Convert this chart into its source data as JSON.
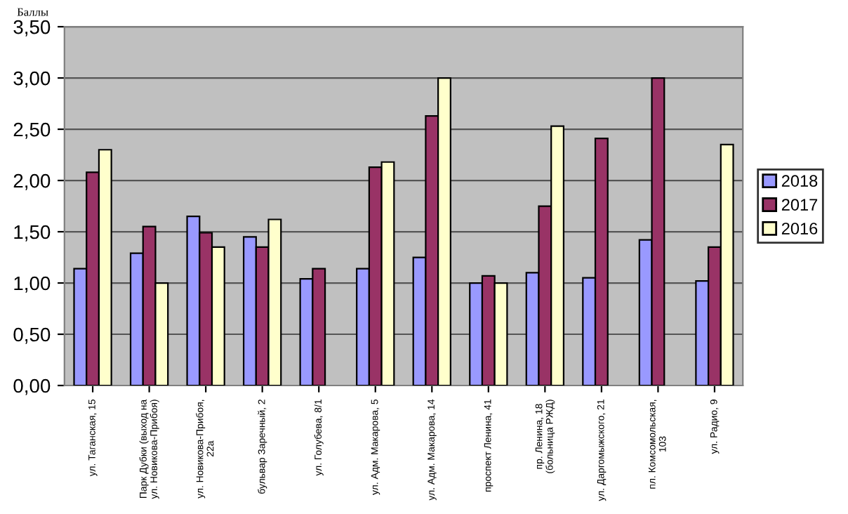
{
  "chart_data": {
    "type": "bar",
    "ylabel": "Баллы",
    "categories": [
      "ул. Таганская, 15",
      "Парк Дубки (выход на\nул. Новикова-Прибоя)",
      "ул. Новикова-Прибоя,\n22а",
      "бульвар Заречный, 2",
      "ул. Голубева, 8/1",
      "ул. Адм. Макарова, 5",
      "ул. Адм. Макарова, 14",
      "проспект Ленина, 41",
      "пр. Ленина, 18\n(больница РЖД)",
      "ул. Даргомыжского, 21",
      "пл. Комсомольская,\n103",
      "ул. Радио, 9"
    ],
    "series": [
      {
        "name": "2018",
        "color": "#9999ff",
        "values": [
          1.14,
          1.29,
          1.65,
          1.45,
          1.04,
          1.14,
          1.25,
          1.0,
          1.1,
          1.05,
          1.42,
          1.02
        ]
      },
      {
        "name": "2017",
        "color": "#993366",
        "values": [
          2.08,
          1.55,
          1.49,
          1.35,
          1.14,
          2.13,
          2.63,
          1.07,
          1.75,
          2.41,
          3.0,
          1.35
        ]
      },
      {
        "name": "2016",
        "color": "#ffffcc",
        "values": [
          2.3,
          1.0,
          1.35,
          1.62,
          null,
          2.18,
          3.0,
          1.0,
          2.53,
          null,
          null,
          2.35
        ]
      }
    ],
    "ylim": [
      0,
      3.5
    ],
    "yticks": [
      {
        "value": 0,
        "label": "0,00"
      },
      {
        "value": 0.5,
        "label": "0,50"
      },
      {
        "value": 1,
        "label": "1,00"
      },
      {
        "value": 1.5,
        "label": "1,50"
      },
      {
        "value": 2,
        "label": "2,00"
      },
      {
        "value": 2.5,
        "label": "2,50"
      },
      {
        "value": 3,
        "label": "3,00"
      },
      {
        "value": 3.5,
        "label": "3,50"
      }
    ],
    "grid": "y",
    "legend": "right"
  }
}
